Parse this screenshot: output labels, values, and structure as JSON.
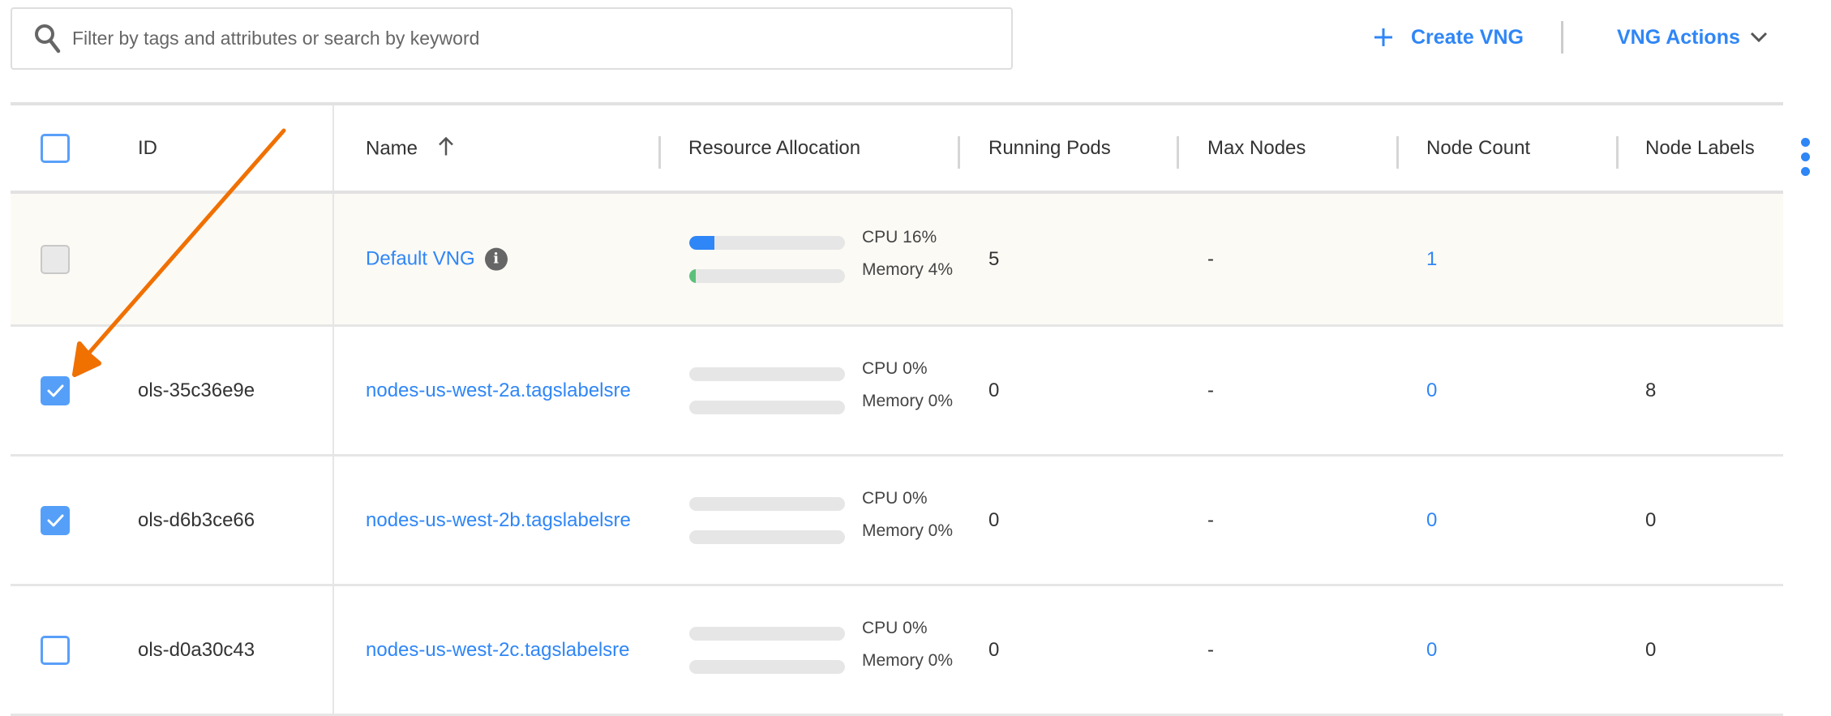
{
  "search": {
    "placeholder": "Filter by tags and attributes or search by keyword",
    "icon": "search-icon"
  },
  "toolbar": {
    "create_label": "Create VNG",
    "create_icon": "plus-icon",
    "actions_label": "VNG Actions",
    "actions_icon": "chevron-down-icon"
  },
  "colors": {
    "accent": "#2f86f6",
    "cpu_bar": "#2f86f6",
    "memory_bar": "#5cc07a",
    "default_row_bg": "#fcfaf5",
    "annotation_arrow": "#f07000"
  },
  "table": {
    "columns": [
      "ID",
      "Name",
      "Resource Allocation",
      "Running Pods",
      "Max Nodes",
      "Node Count",
      "Node Labels"
    ],
    "sort": {
      "column": "Name",
      "direction": "ascending"
    },
    "rows": [
      {
        "checkbox": "disabled",
        "id": "",
        "name": "Default VNG",
        "info": true,
        "cpu_label": "CPU 16%",
        "cpu": 16,
        "memory_label": "Memory 4%",
        "memory": 4,
        "running_pods": "5",
        "max_nodes": "-",
        "node_count": "1",
        "node_labels": ""
      },
      {
        "checkbox": "checked",
        "id": "ols-35c36e9e",
        "name": "nodes-us-west-2a.tagslabelsre",
        "cpu_label": "CPU 0%",
        "cpu": 0,
        "memory_label": "Memory 0%",
        "memory": 0,
        "running_pods": "0",
        "max_nodes": "-",
        "node_count": "0",
        "node_labels": "8"
      },
      {
        "checkbox": "checked",
        "id": "ols-d6b3ce66",
        "name": "nodes-us-west-2b.tagslabelsre",
        "cpu_label": "CPU 0%",
        "cpu": 0,
        "memory_label": "Memory 0%",
        "memory": 0,
        "running_pods": "0",
        "max_nodes": "-",
        "node_count": "0",
        "node_labels": "0"
      },
      {
        "checkbox": "unchecked",
        "id": "ols-d0a30c43",
        "name": "nodes-us-west-2c.tagslabelsre",
        "cpu_label": "CPU 0%",
        "cpu": 0,
        "memory_label": "Memory 0%",
        "memory": 0,
        "running_pods": "0",
        "max_nodes": "-",
        "node_count": "0",
        "node_labels": "0"
      }
    ]
  }
}
